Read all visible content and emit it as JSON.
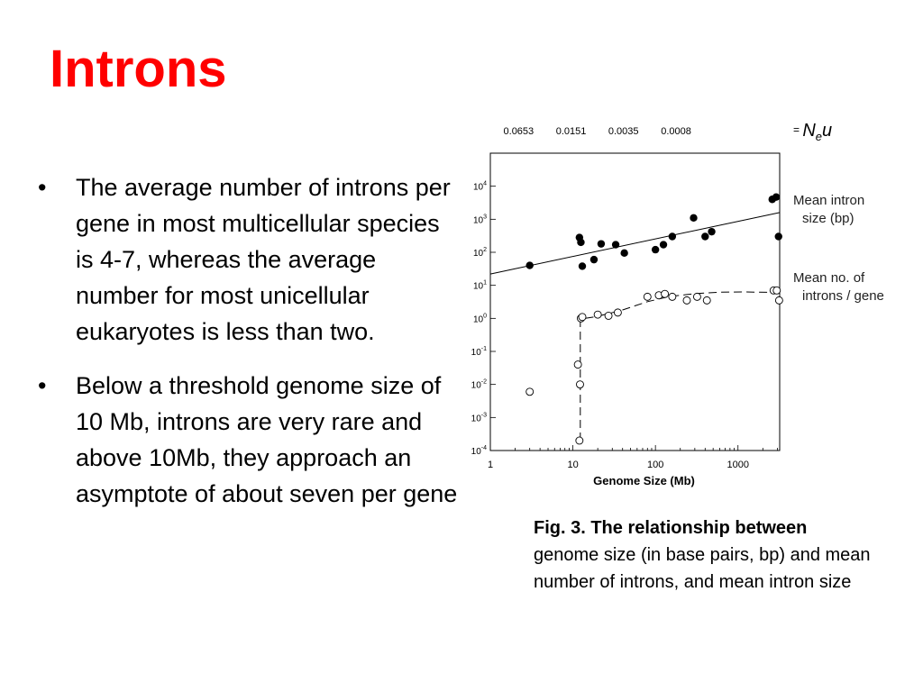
{
  "colors": {
    "title": "#ff0000",
    "text": "#000000"
  },
  "title": "Introns",
  "bullets": [
    {
      "text": "The average number of introns per gene in most multicellular species is 4-7, whereas the average number for most unicellular eukaryotes is less than two."
    },
    {
      "text": "Below a threshold genome size of 10 Mb, introns are very rare and above 10Mb, they approach an asymptote of about seven per gene"
    }
  ],
  "caption": {
    "bold": "Fig. 3. The relationship between",
    "rest": " genome size (in base pairs, bp) and mean number of introns, and mean intron size"
  },
  "chart_data": {
    "type": "scatter",
    "xlabel": "Genome Size (Mb)",
    "x_scale": "log",
    "xlim": [
      1,
      3200
    ],
    "x_ticks": [
      {
        "value": 1,
        "label": "1"
      },
      {
        "value": 10,
        "label": "10"
      },
      {
        "value": 100,
        "label": "100"
      },
      {
        "value": 1000,
        "label": "1000"
      }
    ],
    "y_scale": "log",
    "ylim": [
      0.0001,
      100000
    ],
    "y_ticks": [
      {
        "value": 10000,
        "label": "10^4"
      },
      {
        "value": 1000,
        "label": "10^3"
      },
      {
        "value": 100,
        "label": "10^2"
      },
      {
        "value": 10,
        "label": "10^1"
      },
      {
        "value": 1,
        "label": "10^0"
      },
      {
        "value": 0.1,
        "label": "10^-1"
      },
      {
        "value": 0.01,
        "label": "10^-2"
      },
      {
        "value": 0.001,
        "label": "10^-3"
      },
      {
        "value": 0.0001,
        "label": "10^-4"
      }
    ],
    "top_axis": {
      "label": "= N_e u",
      "ticks": [
        {
          "x": 2.2,
          "label": "0.0653"
        },
        {
          "x": 9.5,
          "label": "0.0151"
        },
        {
          "x": 41,
          "label": "0.0035"
        },
        {
          "x": 178,
          "label": "0.0008"
        }
      ]
    },
    "series": [
      {
        "name": "Mean intron size (bp)",
        "marker": "filled-circle",
        "x": [
          3,
          12,
          12.5,
          13,
          18,
          22,
          33,
          42,
          100,
          125,
          160,
          290,
          400,
          480,
          2600,
          2900,
          3100
        ],
        "y": [
          40,
          280,
          200,
          38,
          60,
          180,
          170,
          95,
          120,
          170,
          300,
          1100,
          300,
          420,
          4000,
          4700,
          300
        ],
        "trend": {
          "type": "line",
          "x": [
            1,
            3200
          ],
          "y": [
            22,
            1600
          ]
        }
      },
      {
        "name": "Mean no. of introns / gene",
        "marker": "open-circle",
        "x": [
          3,
          11.5,
          12,
          12.2,
          12.5,
          13,
          20,
          27,
          35,
          80,
          110,
          130,
          160,
          240,
          320,
          420,
          2700,
          2950,
          3150
        ],
        "y": [
          0.006,
          0.04,
          0.0002,
          0.01,
          1.0,
          1.1,
          1.3,
          1.2,
          1.5,
          4.5,
          5.0,
          5.5,
          4.5,
          3.5,
          4.5,
          3.5,
          7,
          7,
          3.5
        ],
        "trend": {
          "type": "dashed-curve",
          "x": [
            12.3,
            12.3,
            14,
            20,
            40,
            80,
            150,
            300,
            600,
            1200,
            2500,
            3200
          ],
          "y": [
            0.0002,
            0.9,
            1.0,
            1.15,
            1.8,
            3.2,
            4.6,
            5.6,
            6.2,
            6.3,
            6.1,
            6.0
          ]
        }
      }
    ]
  }
}
